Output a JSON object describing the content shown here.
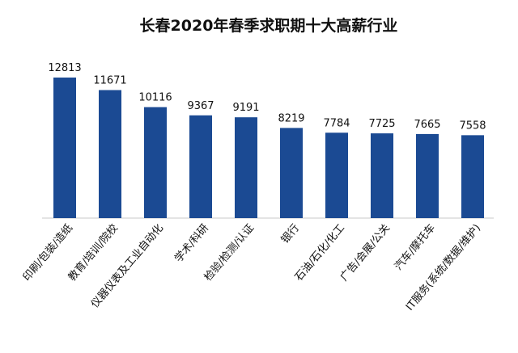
{
  "chart_data": {
    "type": "bar",
    "title": "长春2020年春季求职期十大高薪行业",
    "categories": [
      "印刷/包装/造纸",
      "教育/培训/院校",
      "仪器仪表及工业自动化",
      "学术/科研",
      "检验/检测/认证",
      "银行",
      "石油/石化/化工",
      "广告/会展/公关",
      "汽车/摩托车",
      "IT服务(系统/数据/维护)"
    ],
    "values": [
      12813,
      11671,
      10116,
      9367,
      9191,
      8219,
      7784,
      7725,
      7665,
      7558
    ],
    "value_labels": [
      "12813",
      "11671",
      "10116",
      "9367",
      "9191",
      "8219",
      "7784",
      "7725",
      "7665",
      "7558"
    ],
    "xlabel": "",
    "ylabel": "",
    "ylim": [
      0,
      14000
    ],
    "grid": false,
    "legend": "none",
    "bar_color": "#1b4a93"
  }
}
